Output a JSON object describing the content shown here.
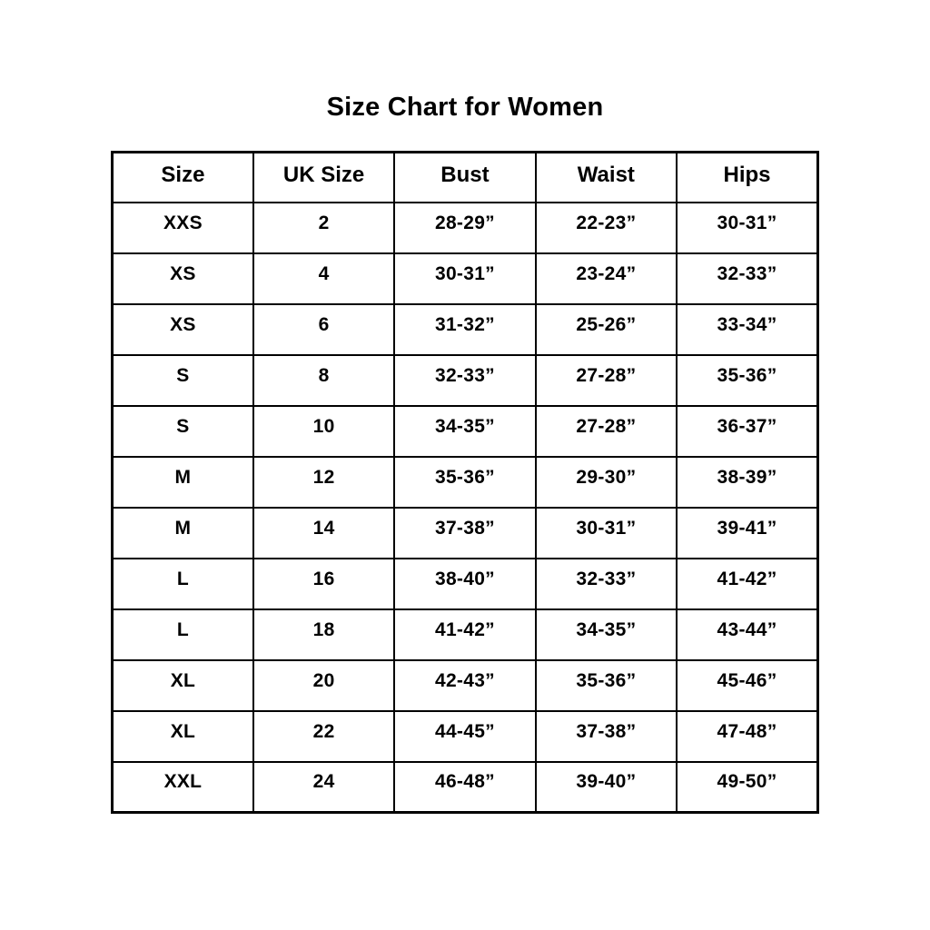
{
  "title": "Size Chart for Women",
  "chart_data": {
    "type": "table",
    "title": "Size Chart for Women",
    "columns": [
      "Size",
      "UK Size",
      "Bust",
      "Waist",
      "Hips"
    ],
    "rows": [
      [
        "XXS",
        "2",
        "28-29”",
        "22-23”",
        "30-31”"
      ],
      [
        "XS",
        "4",
        "30-31”",
        "23-24”",
        "32-33”"
      ],
      [
        "XS",
        "6",
        "31-32”",
        "25-26”",
        "33-34”"
      ],
      [
        "S",
        "8",
        "32-33”",
        "27-28”",
        "35-36”"
      ],
      [
        "S",
        "10",
        "34-35”",
        "27-28”",
        "36-37”"
      ],
      [
        "M",
        "12",
        "35-36”",
        "29-30”",
        "38-39”"
      ],
      [
        "M",
        "14",
        "37-38”",
        "30-31”",
        "39-41”"
      ],
      [
        "L",
        "16",
        "38-40”",
        "32-33”",
        "41-42”"
      ],
      [
        "L",
        "18",
        "41-42”",
        "34-35”",
        "43-44”"
      ],
      [
        "XL",
        "20",
        "42-43”",
        "35-36”",
        "45-46”"
      ],
      [
        "XL",
        "22",
        "44-45”",
        "37-38”",
        "47-48”"
      ],
      [
        "XXL",
        "24",
        "46-48”",
        "39-40”",
        "49-50”"
      ]
    ],
    "layout": {
      "grid": "on",
      "text_color": "#000000",
      "border_color": "#000000",
      "background_color": "#ffffff"
    }
  }
}
